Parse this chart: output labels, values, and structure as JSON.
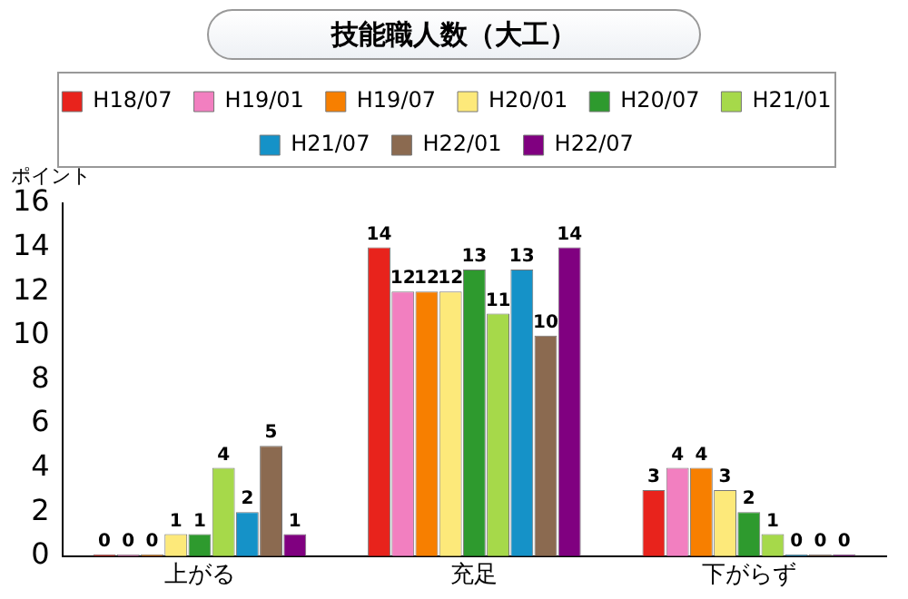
{
  "chart_data": {
    "type": "bar",
    "title": "技能職人数（大工）",
    "ylabel": "ポイント",
    "categories": [
      "上がる",
      "充足",
      "下がらず"
    ],
    "series": [
      {
        "name": "H18/07",
        "color": "#e8231c",
        "values": [
          0,
          14,
          3
        ]
      },
      {
        "name": "H19/01",
        "color": "#f27fc0",
        "values": [
          0,
          12,
          4
        ]
      },
      {
        "name": "H19/07",
        "color": "#f77f00",
        "values": [
          0,
          12,
          4
        ]
      },
      {
        "name": "H20/01",
        "color": "#fde97a",
        "values": [
          1,
          12,
          3
        ]
      },
      {
        "name": "H20/07",
        "color": "#2e9a2e",
        "values": [
          1,
          13,
          2
        ]
      },
      {
        "name": "H21/01",
        "color": "#a6d94a",
        "values": [
          4,
          11,
          1
        ]
      },
      {
        "name": "H21/07",
        "color": "#1592c8",
        "values": [
          2,
          13,
          0
        ]
      },
      {
        "name": "H22/01",
        "color": "#8b6a50",
        "values": [
          5,
          10,
          0
        ]
      },
      {
        "name": "H22/07",
        "color": "#800080",
        "values": [
          1,
          14,
          0
        ]
      }
    ],
    "ylim": [
      0,
      16
    ],
    "yticks": [
      0,
      2,
      4,
      6,
      8,
      10,
      12,
      14,
      16
    ],
    "grid": false,
    "legend": "top",
    "data_labels": true
  }
}
